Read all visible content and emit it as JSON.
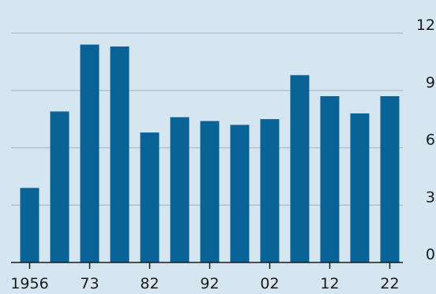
{
  "chart_data": {
    "type": "bar",
    "categories": [
      "1956",
      "",
      "73",
      "",
      "82",
      "",
      "92",
      "",
      "02",
      "",
      "12",
      "",
      "22"
    ],
    "values": [
      3.9,
      7.9,
      11.4,
      11.3,
      6.8,
      7.6,
      7.4,
      7.2,
      7.5,
      9.8,
      8.7,
      7.8,
      8.7
    ],
    "x_tick_labels": [
      "1956",
      "73",
      "82",
      "92",
      "02",
      "12",
      "22"
    ],
    "y_ticks": [
      "0",
      "3",
      "6",
      "9",
      "12"
    ],
    "ylim": [
      0,
      12
    ],
    "y_axis_position": "right",
    "grid": true,
    "title": "",
    "xlabel": "",
    "ylabel": "",
    "colors": {
      "bar": "#0a6397",
      "grid": "#a9bcca",
      "background": "#d5e6f0",
      "axis": "#1b1b1b"
    }
  }
}
